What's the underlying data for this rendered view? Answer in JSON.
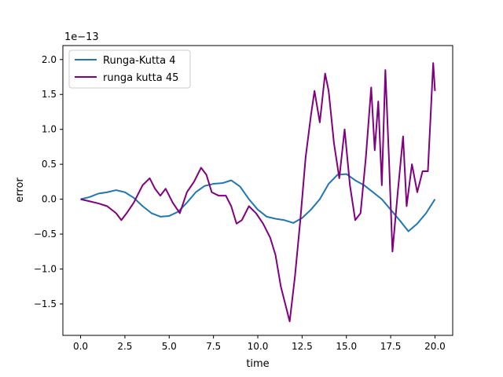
{
  "chart_data": {
    "type": "line",
    "title": "",
    "xlabel": "time",
    "ylabel": "error",
    "y_offset_label": "1e−13",
    "xlim": [
      -1.0,
      21.0
    ],
    "ylim": [
      -1.95e-13,
      2.2e-13
    ],
    "x_ticks": [
      0.0,
      2.5,
      5.0,
      7.5,
      10.0,
      12.5,
      15.0,
      17.5,
      20.0
    ],
    "x_tick_labels": [
      "0.0",
      "2.5",
      "5.0",
      "7.5",
      "10.0",
      "12.5",
      "15.0",
      "17.5",
      "20.0"
    ],
    "y_ticks": [
      -1.5e-13,
      -1e-13,
      -5e-14,
      0.0,
      5e-14,
      1e-13,
      1.5e-13,
      2e-13
    ],
    "y_tick_labels": [
      "−1.5",
      "−1.0",
      "−0.5",
      "0.0",
      "0.5",
      "1.0",
      "1.5",
      "2.0"
    ],
    "grid": false,
    "legend_position": "upper-left",
    "series": [
      {
        "name": "Runga-Kutta 4",
        "color": "#1f77b4",
        "x": [
          0,
          0.5,
          1,
          1.5,
          2,
          2.5,
          3,
          3.5,
          4,
          4.5,
          5,
          5.5,
          6,
          6.5,
          7,
          7.5,
          8,
          8.5,
          9,
          9.5,
          10,
          10.5,
          11,
          11.5,
          12,
          12.5,
          13,
          13.5,
          14,
          14.5,
          15,
          15.5,
          16,
          16.5,
          17,
          17.5,
          18,
          18.5,
          19,
          19.5,
          20
        ],
        "y": [
          0.0,
          3e-15,
          8e-15,
          1e-14,
          1.3e-14,
          1e-14,
          2e-15,
          -1e-14,
          -2e-14,
          -2.5e-14,
          -2.4e-14,
          -1.8e-14,
          -5e-15,
          1e-14,
          1.9e-14,
          2.2e-14,
          2.3e-14,
          2.7e-14,
          1.8e-14,
          0.0,
          -1.5e-14,
          -2.5e-14,
          -2.8e-14,
          -3e-14,
          -3.4e-14,
          -2.7e-14,
          -1.5e-14,
          0.0,
          2.2e-14,
          3.5e-14,
          3.6e-14,
          2.7e-14,
          2e-14,
          1e-14,
          0.0,
          -1.5e-14,
          -3e-14,
          -4.6e-14,
          -3.5e-14,
          -2e-14,
          0.0
        ]
      },
      {
        "name": "runga kutta 45",
        "color": "#800080",
        "x": [
          0,
          0.5,
          1,
          1.5,
          2,
          2.3,
          2.6,
          3,
          3.5,
          3.9,
          4.2,
          4.5,
          4.8,
          5.2,
          5.6,
          6.0,
          6.4,
          6.8,
          7.1,
          7.4,
          7.8,
          8.2,
          8.5,
          8.8,
          9.1,
          9.5,
          9.9,
          10.3,
          10.7,
          11.0,
          11.3,
          11.6,
          11.8,
          12.1,
          12.4,
          12.7,
          13.0,
          13.2,
          13.5,
          13.8,
          14.0,
          14.3,
          14.6,
          14.9,
          15.2,
          15.5,
          15.8,
          16.1,
          16.4,
          16.6,
          16.8,
          17.0,
          17.2,
          17.4,
          17.6,
          17.9,
          18.2,
          18.4,
          18.7,
          19.0,
          19.3,
          19.6,
          19.9,
          20.0
        ],
        "y": [
          0.0,
          -3e-15,
          -6e-15,
          -1e-14,
          -2e-14,
          -3e-14,
          -2e-14,
          -5e-15,
          2e-14,
          3e-14,
          1.5e-14,
          5e-15,
          1.5e-14,
          -5e-15,
          -2e-14,
          1e-14,
          2.5e-14,
          4.5e-14,
          3.5e-14,
          1e-14,
          5e-15,
          5e-15,
          -1e-14,
          -3.5e-14,
          -3e-14,
          -1e-14,
          -2e-14,
          -3.5e-14,
          -5.5e-14,
          -8e-14,
          -1.25e-13,
          -1.55e-13,
          -1.75e-13,
          -1.1e-13,
          -3e-14,
          6e-14,
          1.2e-13,
          1.55e-13,
          1.1e-13,
          1.8e-13,
          1.55e-13,
          8e-14,
          3e-14,
          1e-13,
          2e-14,
          -3e-14,
          -2e-14,
          6e-14,
          1.6e-13,
          7e-14,
          1.4e-13,
          2e-14,
          1.85e-13,
          6e-14,
          -7.5e-14,
          1e-14,
          9e-14,
          -1e-14,
          5e-14,
          1e-14,
          4e-14,
          4e-14,
          1.95e-13,
          1.55e-13
        ]
      }
    ]
  }
}
